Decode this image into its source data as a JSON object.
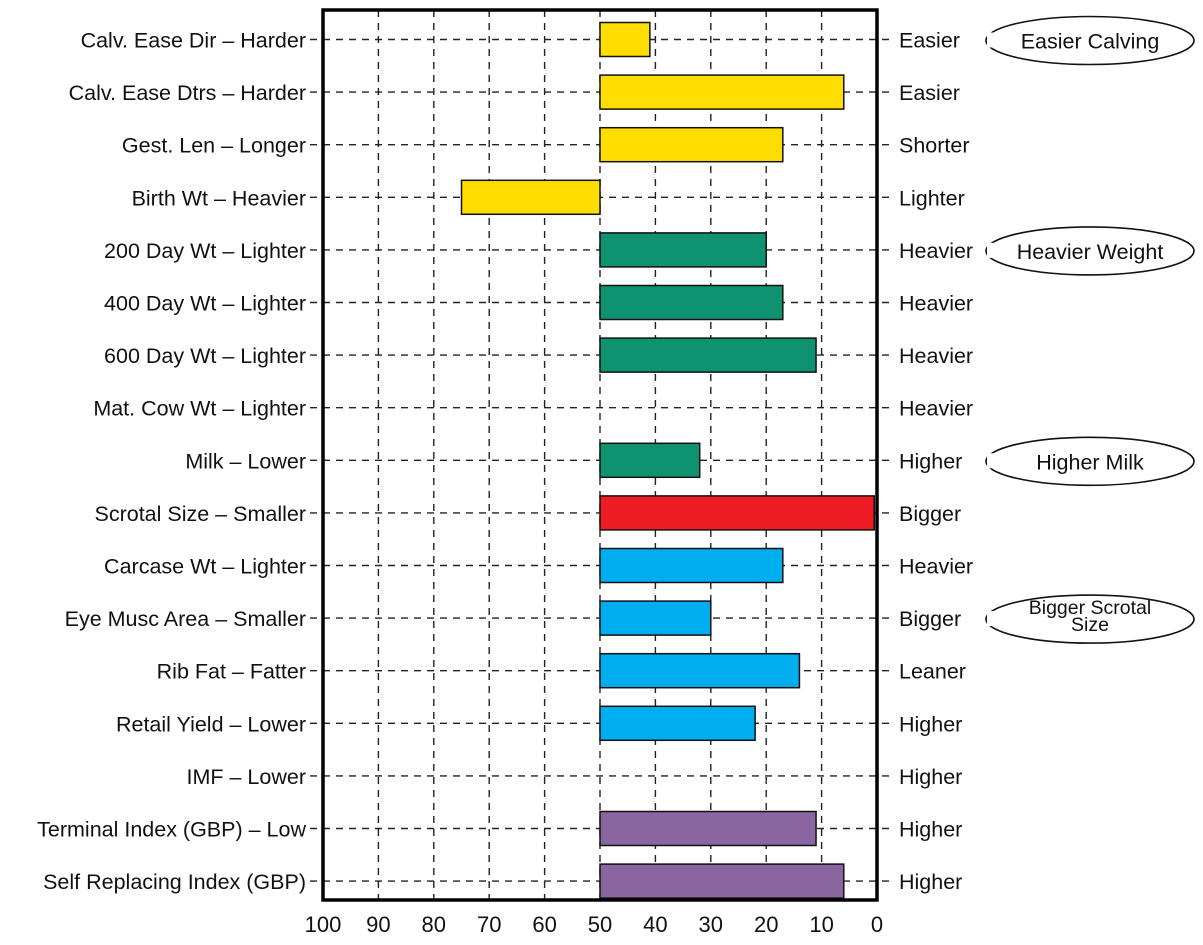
{
  "chart_data": {
    "type": "bar",
    "orientation": "horizontal",
    "x_axis": {
      "ticks": [
        100,
        90,
        80,
        70,
        60,
        50,
        40,
        30,
        20,
        10,
        0
      ],
      "range": [
        100,
        0
      ],
      "reversed": true,
      "baseline": 50
    },
    "grid": true,
    "rows": [
      {
        "left_label": "Calv. Ease Dir – Harder",
        "right_label": "Easier",
        "value": 41,
        "group": "calving"
      },
      {
        "left_label": "Calv. Ease Dtrs – Harder",
        "right_label": "Easier",
        "value": 6,
        "group": "calving"
      },
      {
        "left_label": "Gest. Len – Longer",
        "right_label": "Shorter",
        "value": 17,
        "group": "calving"
      },
      {
        "left_label": "Birth Wt – Heavier",
        "right_label": "Lighter",
        "value": 75,
        "group": "calving"
      },
      {
        "left_label": "200 Day Wt – Lighter",
        "right_label": "Heavier",
        "value": 20,
        "group": "growth"
      },
      {
        "left_label": "400 Day Wt – Lighter",
        "right_label": "Heavier",
        "value": 17,
        "group": "growth"
      },
      {
        "left_label": "600 Day Wt – Lighter",
        "right_label": "Heavier",
        "value": 11,
        "group": "growth"
      },
      {
        "left_label": "Mat. Cow Wt – Lighter",
        "right_label": "Heavier",
        "value": null,
        "group": "growth"
      },
      {
        "left_label": "Milk – Lower",
        "right_label": "Higher",
        "value": 32,
        "group": "growth"
      },
      {
        "left_label": "Scrotal Size – Smaller",
        "right_label": "Bigger",
        "value": 0.5,
        "group": "fertility"
      },
      {
        "left_label": "Carcase Wt – Lighter",
        "right_label": "Heavier",
        "value": 17,
        "group": "carcase"
      },
      {
        "left_label": "Eye Musc Area – Smaller",
        "right_label": "Bigger",
        "value": 30,
        "group": "carcase"
      },
      {
        "left_label": "Rib Fat – Fatter",
        "right_label": "Leaner",
        "value": 14,
        "group": "carcase"
      },
      {
        "left_label": "Retail Yield – Lower",
        "right_label": "Higher",
        "value": 22,
        "group": "carcase"
      },
      {
        "left_label": "IMF – Lower",
        "right_label": "Higher",
        "value": null,
        "group": "carcase"
      },
      {
        "left_label": "Terminal Index (GBP) – Low",
        "right_label": "Higher",
        "value": 11,
        "group": "index"
      },
      {
        "left_label": "Self Replacing Index (GBP)",
        "right_label": "Higher",
        "value": 6,
        "group": "index"
      }
    ],
    "group_colors": {
      "calving": "#ffdd00",
      "growth": "#0e9270",
      "fertility": "#ee1c25",
      "carcase": "#00aeef",
      "index": "#8966a0"
    },
    "callouts": [
      {
        "row": 0,
        "lines": [
          "Easier Calving"
        ]
      },
      {
        "row": 4,
        "lines": [
          "Heavier Weight"
        ]
      },
      {
        "row": 8,
        "lines": [
          "Higher Milk"
        ]
      },
      {
        "row": 11,
        "lines": [
          "Bigger Scrotal",
          "Size"
        ]
      }
    ]
  }
}
